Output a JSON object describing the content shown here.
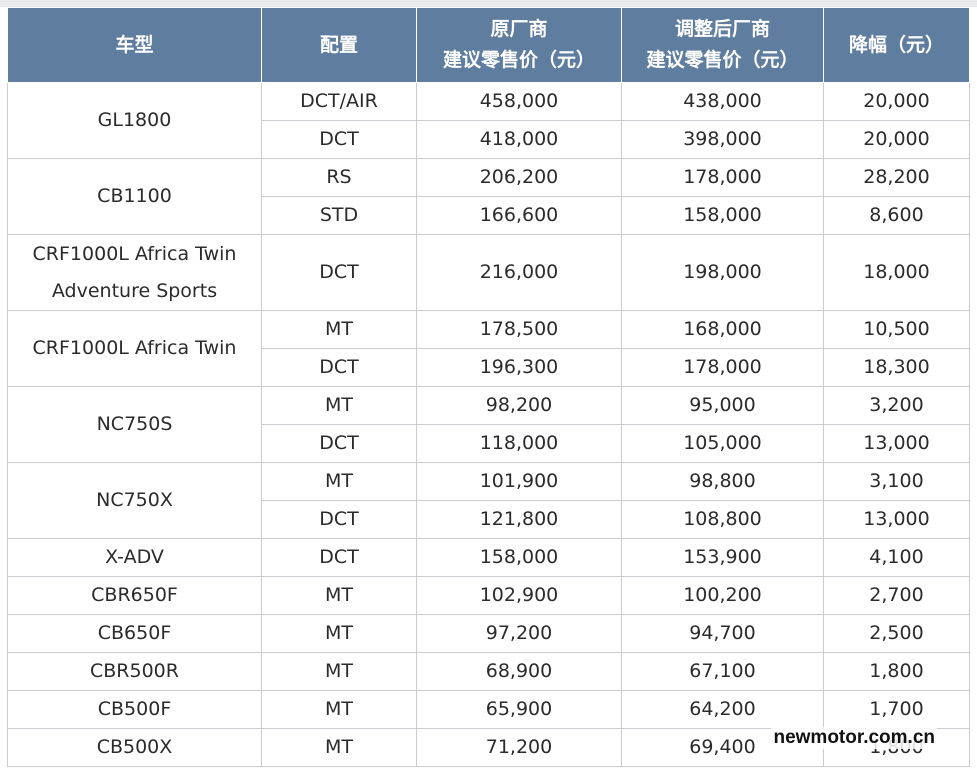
{
  "header": {
    "model": "车型",
    "config": "配置",
    "orig_price_line1": "原厂商",
    "orig_price_line2": "建议零售价（元）",
    "new_price_line1": "调整后厂商",
    "new_price_line2": "建议零售价（元）",
    "reduction": "降幅（元）"
  },
  "rows": [
    {
      "model": "GL1800",
      "config": "DCT/AIR",
      "orig": "458,000",
      "new": "438,000",
      "reduction": "20,000"
    },
    {
      "config": "DCT",
      "orig": "418,000",
      "new": "398,000",
      "reduction": "20,000"
    },
    {
      "model": "CB1100",
      "config": "RS",
      "orig": "206,200",
      "new": "178,000",
      "reduction": "28,200"
    },
    {
      "config": "STD",
      "orig": "166,600",
      "new": "158,000",
      "reduction": "8,600"
    },
    {
      "model_line1": "CRF1000L Africa Twin",
      "model_line2": "Adventure Sports",
      "config": "DCT",
      "orig": "216,000",
      "new": "198,000",
      "reduction": "18,000"
    },
    {
      "model": "CRF1000L Africa Twin",
      "config": "MT",
      "orig": "178,500",
      "new": "168,000",
      "reduction": "10,500"
    },
    {
      "config": "DCT",
      "orig": "196,300",
      "new": "178,000",
      "reduction": "18,300"
    },
    {
      "model": "NC750S",
      "config": "MT",
      "orig": "98,200",
      "new": "95,000",
      "reduction": "3,200"
    },
    {
      "config": "DCT",
      "orig": "118,000",
      "new": "105,000",
      "reduction": "13,000"
    },
    {
      "model": "NC750X",
      "config": "MT",
      "orig": "101,900",
      "new": "98,800",
      "reduction": "3,100"
    },
    {
      "config": "DCT",
      "orig": "121,800",
      "new": "108,800",
      "reduction": "13,000"
    },
    {
      "model": "X-ADV",
      "config": "DCT",
      "orig": "158,000",
      "new": "153,900",
      "reduction": "4,100"
    },
    {
      "model": "CBR650F",
      "config": "MT",
      "orig": "102,900",
      "new": "100,200",
      "reduction": "2,700"
    },
    {
      "model": "CB650F",
      "config": "MT",
      "orig": "97,200",
      "new": "94,700",
      "reduction": "2,500"
    },
    {
      "model": "CBR500R",
      "config": "MT",
      "orig": "68,900",
      "new": "67,100",
      "reduction": "1,800"
    },
    {
      "model": "CB500F",
      "config": "MT",
      "orig": "65,900",
      "new": "64,200",
      "reduction": "1,700"
    },
    {
      "model": "CB500X",
      "config": "MT",
      "orig": "71,200",
      "new": "69,400",
      "reduction": "1,800"
    }
  ],
  "watermark": "newmotor.com.cn",
  "colors": {
    "header_bg": "#5f7d9e",
    "header_text": "#ffffff",
    "border": "#c9cdd2"
  }
}
